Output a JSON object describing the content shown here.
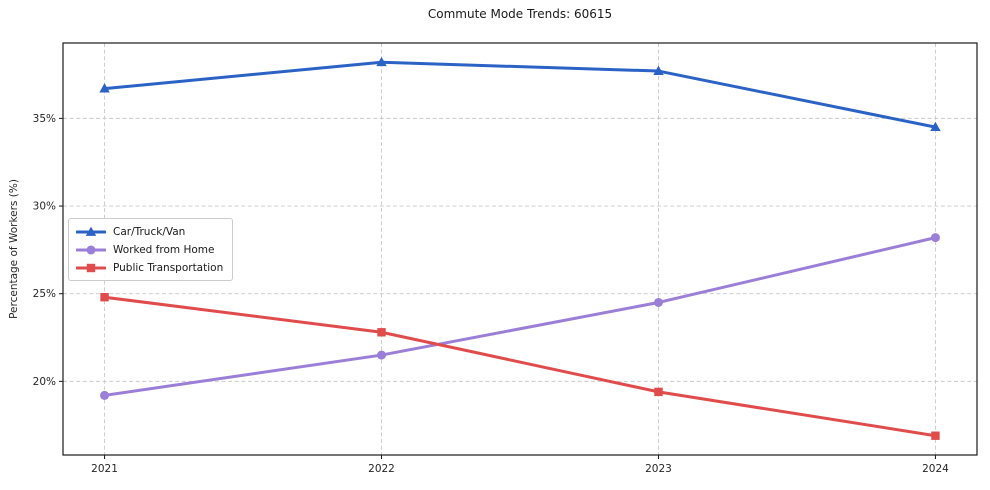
{
  "chart_data": {
    "type": "line",
    "title": "Commute Mode Trends: 60615",
    "xlabel": "",
    "ylabel": "Percentage of Workers (%)",
    "categories": [
      "2021",
      "2022",
      "2023",
      "2024"
    ],
    "x": [
      2021,
      2022,
      2023,
      2024
    ],
    "series": [
      {
        "name": "Car/Truck/Van",
        "color": "#2b62c5",
        "marker": "triangle",
        "values": [
          36.7,
          38.2,
          37.7,
          34.5
        ]
      },
      {
        "name": "Worked from Home",
        "color": "#9b7ed7",
        "marker": "circle",
        "values": [
          19.2,
          21.5,
          24.5,
          28.2
        ]
      },
      {
        "name": "Public Transportation",
        "color": "#e04c4c",
        "marker": "square",
        "values": [
          24.8,
          22.8,
          19.4,
          16.9
        ]
      }
    ],
    "xlim": [
      2020.85,
      2024.15
    ],
    "ylim": [
      15.8,
      39.3
    ],
    "yticks": [
      20,
      25,
      30,
      35
    ],
    "ytick_suffix": "%",
    "grid": true,
    "grid_style": "dashed",
    "legend_position": "left-center",
    "colors": {
      "grid": "#c9c9c9",
      "spine": "#1a1a1a",
      "tick_text": "#262626",
      "background": "#ffffff"
    }
  }
}
